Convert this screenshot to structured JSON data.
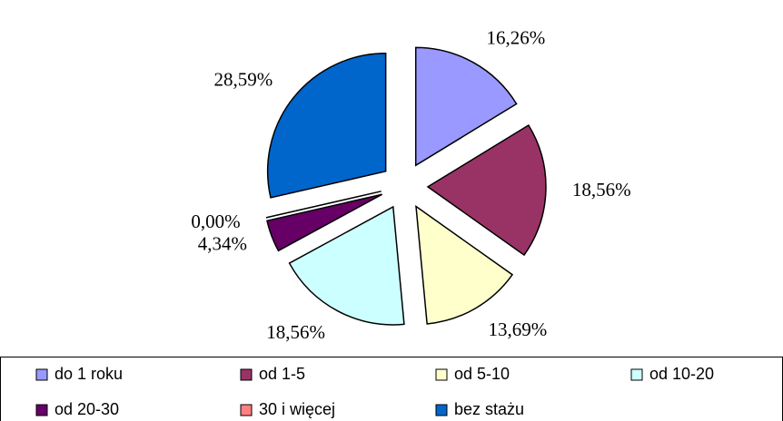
{
  "chart_data": {
    "type": "pie",
    "categories": [
      "do 1 roku",
      "od 1-5",
      "od 5-10",
      "od 10-20",
      "od 20-30",
      "30 i więcej",
      "bez stażu"
    ],
    "values": [
      16.26,
      18.56,
      13.69,
      18.56,
      4.34,
      0.0,
      28.59
    ],
    "value_labels": [
      "16,26%",
      "18,56%",
      "13,69%",
      "18,56%",
      "4,34%",
      "0,00%",
      "28,59%"
    ],
    "colors": [
      "#9999ff",
      "#993366",
      "#ffffcc",
      "#ccffff",
      "#660066",
      "#ff8080",
      "#0066cc"
    ],
    "legend": "bottom"
  }
}
